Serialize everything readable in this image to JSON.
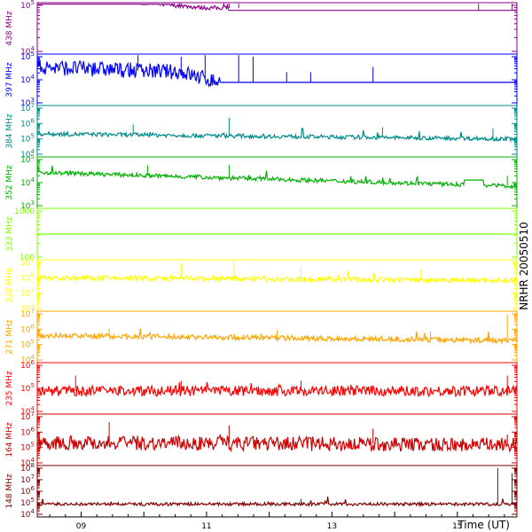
{
  "chart_data": {
    "type": "line",
    "side_label": "NRHR 20050510",
    "x_axis_label": "Time (UT)",
    "x_ticks": [
      "09",
      "11",
      "13",
      "15"
    ],
    "x_range_hours": [
      8.3,
      15.95
    ],
    "panels": [
      {
        "name": "438 MHz",
        "color": "#8b008b",
        "log": true,
        "tick_labels": [
          {
            "b": "10",
            "e": "4"
          },
          {
            "b": "10",
            "e": "5"
          }
        ],
        "base": 0.85,
        "noise": 0.04,
        "trend": [
          [
            0,
            0.3
          ],
          [
            0.35,
            0.05
          ],
          [
            1,
            0.0
          ]
        ],
        "spikes": [
          [
            0.28,
            0.3
          ],
          [
            0.4,
            0.35
          ],
          [
            0.42,
            0.25
          ],
          [
            0.92,
            0.9
          ],
          [
            0.99,
            0.95
          ]
        ],
        "dropout": [
          [
            0.4,
            1.0
          ]
        ]
      },
      {
        "name": "397 MHz",
        "color": "#0000ff",
        "log": true,
        "tick_labels": [
          {
            "b": "10",
            "e": "3"
          },
          {
            "b": "10",
            "e": "4"
          },
          {
            "b": "10",
            "e": "5"
          }
        ],
        "base": 0.45,
        "noise": 0.15,
        "trend": [
          [
            0,
            0.3
          ],
          [
            0.3,
            0.2
          ],
          [
            0.38,
            0.0
          ],
          [
            1,
            0.0
          ]
        ],
        "spikes": [
          [
            0.21,
            0.8
          ],
          [
            0.3,
            0.3
          ],
          [
            0.35,
            0.6
          ],
          [
            0.42,
            0.6
          ],
          [
            0.45,
            0.5
          ],
          [
            0.52,
            0.2
          ],
          [
            0.57,
            0.2
          ],
          [
            0.7,
            0.3
          ]
        ],
        "dropout": [
          [
            0.38,
            1.0
          ]
        ]
      },
      {
        "name": "384 MHz",
        "color": "#008b8b",
        "log": true,
        "tick_labels": [
          {
            "b": "10",
            "e": "4"
          },
          {
            "b": "10",
            "e": "5"
          },
          {
            "b": "10",
            "e": "6"
          },
          {
            "b": "10",
            "e": "7"
          }
        ],
        "base": 0.4,
        "noise": 0.04,
        "trend": [
          [
            0,
            0.05
          ],
          [
            1,
            -0.05
          ]
        ],
        "spikes": [
          [
            0.2,
            0.2
          ],
          [
            0.4,
            0.35
          ],
          [
            0.72,
            0.2
          ],
          [
            0.95,
            0.2
          ]
        ],
        "dropout": []
      },
      {
        "name": "352 MHz",
        "color": "#00b000",
        "log": true,
        "tick_labels": [
          {
            "b": "10",
            "e": "3"
          },
          {
            "b": "10",
            "e": "4"
          },
          {
            "b": "10",
            "e": "5"
          }
        ],
        "base": 0.55,
        "noise": 0.04,
        "trend": [
          [
            0,
            0.15
          ],
          [
            1,
            -0.12
          ]
        ],
        "spikes": [
          [
            0.23,
            0.2
          ],
          [
            0.4,
            0.25
          ],
          [
            0.98,
            0.2
          ]
        ],
        "dropout": [
          [
            0.89,
            0.93
          ]
        ]
      },
      {
        "name": "333 MHz",
        "color": "#7fff00",
        "log": true,
        "tick_labels": [
          {
            "b": "100",
            "e": ""
          },
          {
            "b": "1000",
            "e": ""
          }
        ],
        "base": 0.5,
        "noise": 0.0,
        "trend": [
          [
            0,
            0.0
          ],
          [
            1,
            0.0
          ]
        ],
        "spikes": [],
        "dropout": []
      },
      {
        "name": "328 MHz",
        "color": "#ffff00",
        "log": true,
        "tick_labels": [
          {
            "b": "10",
            "e": "4"
          },
          {
            "b": "10",
            "e": "5"
          },
          {
            "b": "10",
            "e": "6"
          },
          {
            "b": "10",
            "e": "7"
          }
        ],
        "base": 0.6,
        "noise": 0.05,
        "trend": [
          [
            0,
            0.05
          ],
          [
            1,
            0.0
          ]
        ],
        "spikes": [
          [
            0.3,
            0.3
          ],
          [
            0.41,
            0.6
          ],
          [
            0.55,
            0.25
          ],
          [
            0.8,
            0.2
          ]
        ],
        "dropout": []
      },
      {
        "name": "271 MHz",
        "color": "#ffa500",
        "log": true,
        "tick_labels": [
          {
            "b": "10",
            "e": "4"
          },
          {
            "b": "10",
            "e": "5"
          },
          {
            "b": "10",
            "e": "6"
          },
          {
            "b": "10",
            "e": "7"
          }
        ],
        "base": 0.48,
        "noise": 0.05,
        "trend": [
          [
            0,
            0.05
          ],
          [
            1,
            -0.05
          ]
        ],
        "spikes": [
          [
            0.15,
            0.15
          ],
          [
            0.5,
            0.15
          ],
          [
            0.82,
            0.15
          ],
          [
            0.98,
            0.5
          ]
        ],
        "dropout": []
      },
      {
        "name": "235 MHz",
        "color": "#ff0000",
        "log": true,
        "tick_labels": [
          {
            "b": "10",
            "e": "4"
          },
          {
            "b": "10",
            "e": "5"
          },
          {
            "b": "10",
            "e": "6"
          }
        ],
        "base": 0.45,
        "noise": 0.1,
        "trend": [
          [
            0,
            0.0
          ],
          [
            1,
            0.0
          ]
        ],
        "spikes": [
          [
            0.08,
            0.3
          ],
          [
            0.3,
            0.2
          ],
          [
            0.55,
            0.2
          ],
          [
            0.98,
            0.3
          ]
        ],
        "dropout": []
      },
      {
        "name": "164 MHz",
        "color": "#cc0000",
        "log": true,
        "tick_labels": [
          {
            "b": "10",
            "e": "4"
          },
          {
            "b": "10",
            "e": "5"
          },
          {
            "b": "10",
            "e": "6"
          },
          {
            "b": "10",
            "e": "7"
          }
        ],
        "base": 0.35,
        "noise": 0.14,
        "trend": [
          [
            0,
            0.1
          ],
          [
            1,
            0.05
          ]
        ],
        "spikes": [
          [
            0.15,
            0.4
          ],
          [
            0.4,
            0.35
          ],
          [
            0.7,
            0.3
          ],
          [
            0.98,
            0.2
          ]
        ],
        "dropout": []
      },
      {
        "name": "148 MHz",
        "color": "#800000",
        "log": true,
        "tick_labels": [
          {
            "b": "10",
            "e": "4"
          },
          {
            "b": "10",
            "e": "5"
          },
          {
            "b": "10",
            "e": "6"
          },
          {
            "b": "10",
            "e": "7"
          },
          {
            "b": "10",
            "e": "8"
          }
        ],
        "base": 0.25,
        "noise": 0.03,
        "trend": [
          [
            0,
            0.0
          ],
          [
            1,
            0.0
          ]
        ],
        "spikes": [
          [
            0.55,
            0.1
          ],
          [
            0.96,
            0.7
          ],
          [
            0.99,
            0.6
          ]
        ],
        "dropout": [
          [
            0.83,
            0.84
          ]
        ]
      }
    ]
  }
}
